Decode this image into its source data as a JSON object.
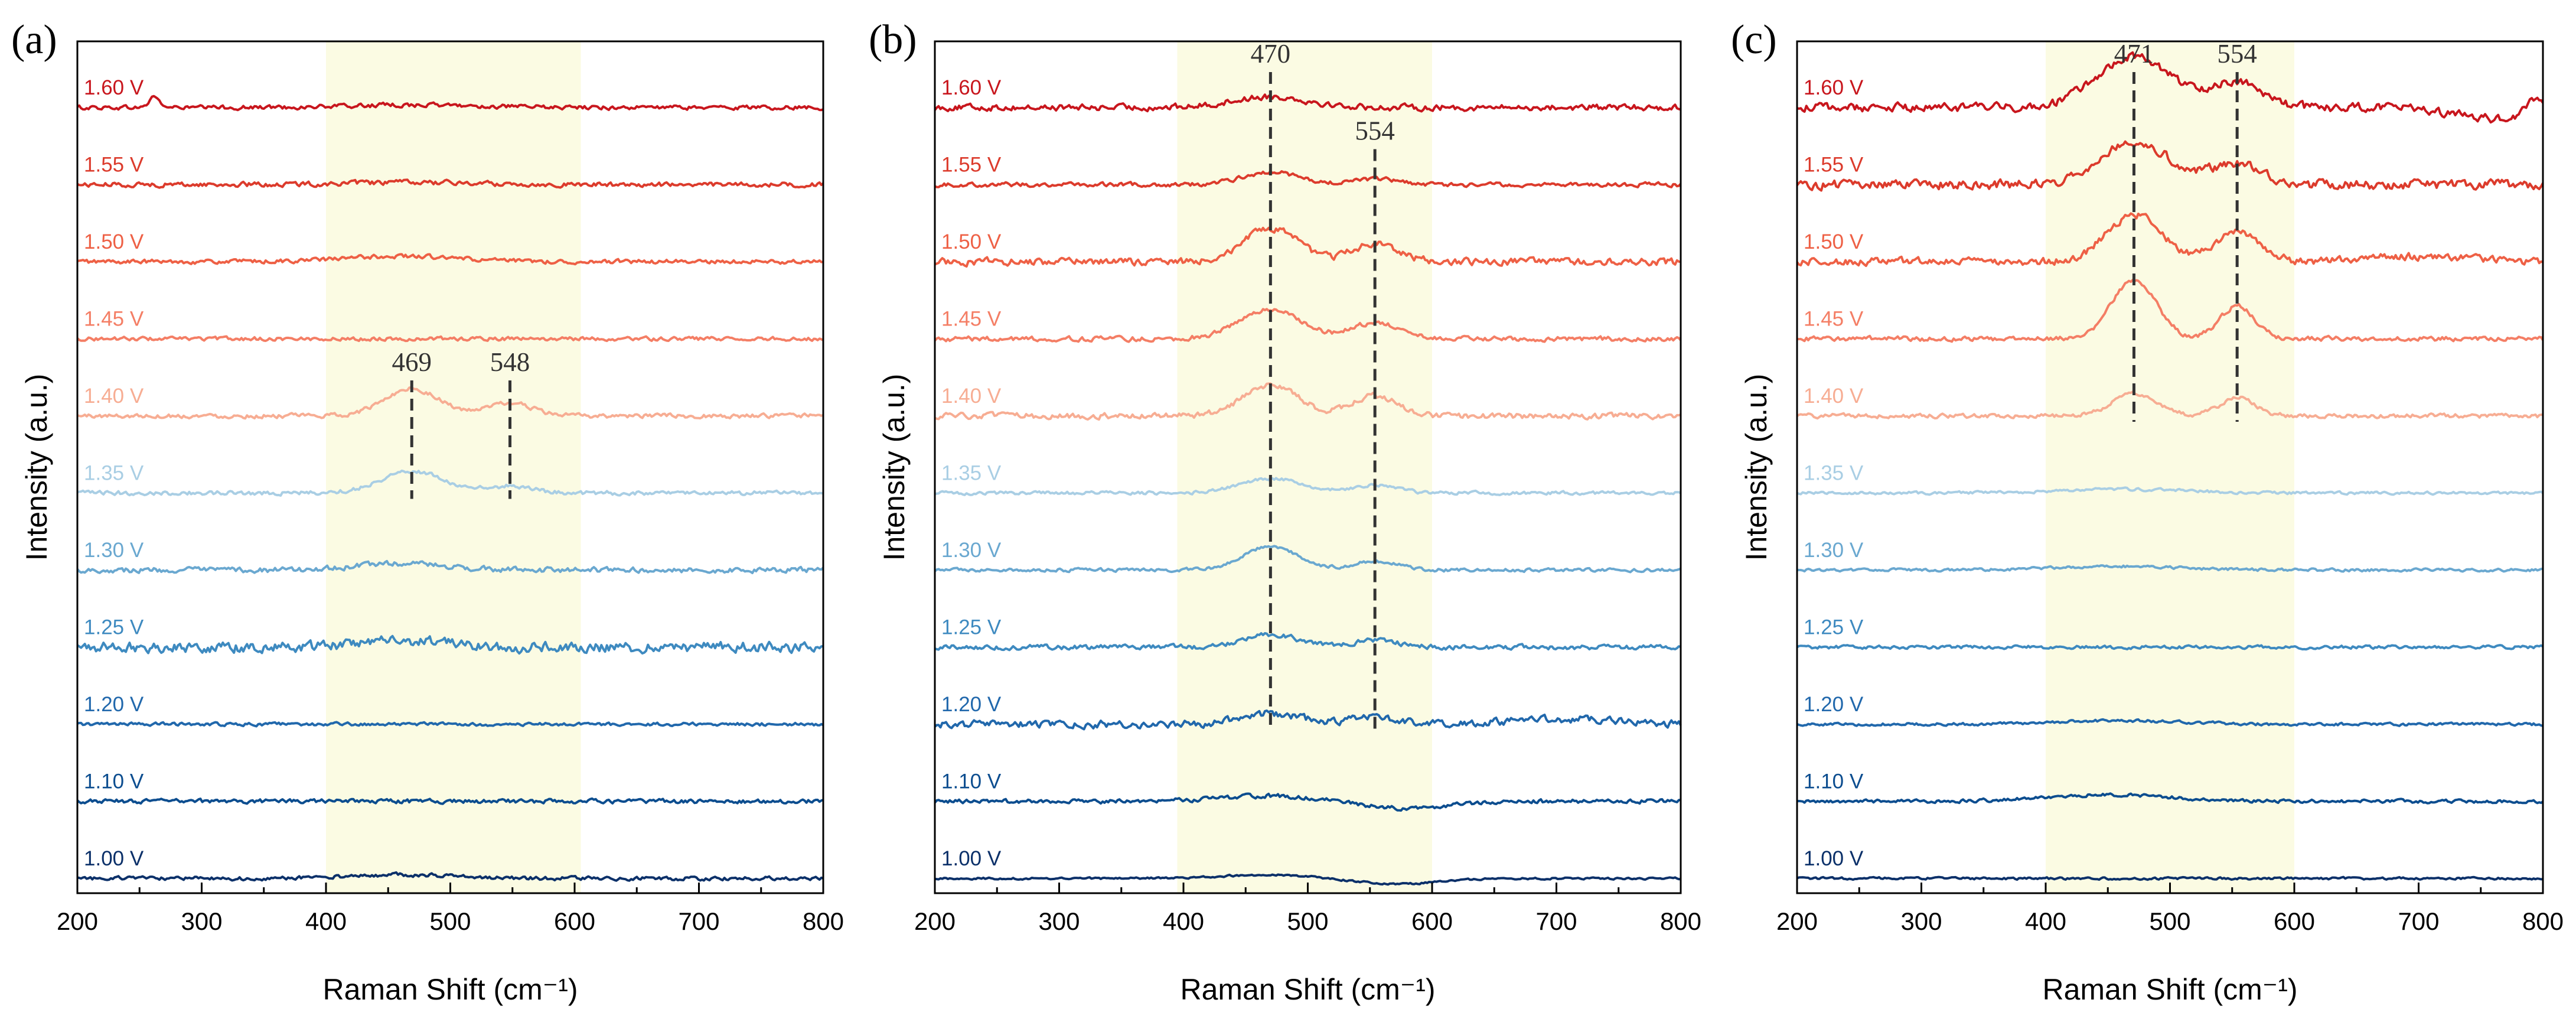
{
  "chart_data": [
    {
      "type": "line",
      "panel_label": "(a)",
      "xlabel": "Raman Shift (cm⁻¹)",
      "ylabel": "Intensity (a.u.)",
      "xlim": [
        200,
        800
      ],
      "xticks": [
        "200",
        "300",
        "400",
        "500",
        "600",
        "700",
        "800"
      ],
      "highlight_range": [
        400,
        605
      ],
      "series": [
        {
          "name": "1.60 V",
          "color": "#c8161d",
          "noise": 0.9,
          "peaks": [
            [
              262,
              3.0,
              4
            ],
            [
              470,
              0.7,
              50
            ]
          ]
        },
        {
          "name": "1.55 V",
          "color": "#dc3b2c",
          "noise": 1.0,
          "peaks": [
            [
              470,
              0.6,
              50
            ]
          ]
        },
        {
          "name": "1.50 V",
          "color": "#ee6045",
          "noise": 0.9,
          "peaks": [
            [
              460,
              1.5,
              45
            ]
          ]
        },
        {
          "name": "1.45 V",
          "color": "#f47e65",
          "noise": 0.8,
          "peaks": []
        },
        {
          "name": "1.40 V",
          "color": "#f7ad93",
          "noise": 0.9,
          "peaks": [
            [
              469,
              7.5,
              22
            ],
            [
              548,
              3.5,
              18
            ]
          ]
        },
        {
          "name": "1.35 V",
          "color": "#a9cee4",
          "noise": 0.9,
          "peaks": [
            [
              469,
              6.0,
              25
            ],
            [
              548,
              1.8,
              18
            ]
          ]
        },
        {
          "name": "1.30 V",
          "color": "#6aa8d0",
          "noise": 1.1,
          "peaks": [
            [
              460,
              1.8,
              35
            ]
          ]
        },
        {
          "name": "1.25 V",
          "color": "#3e8ac0",
          "noise": 2.2,
          "peaks": [
            [
              460,
              1.8,
              35
            ]
          ]
        },
        {
          "name": "1.20 V",
          "color": "#2168ac",
          "noise": 0.7,
          "peaks": []
        },
        {
          "name": "1.10 V",
          "color": "#0c4d8f",
          "noise": 0.9,
          "peaks": []
        },
        {
          "name": "1.00 V",
          "color": "#0b3069",
          "noise": 0.8,
          "peaks": [
            [
              460,
              1.0,
              40
            ]
          ]
        }
      ],
      "peak_annotations": [
        {
          "position": 469,
          "label": "469",
          "from_series": "1.40 V",
          "to_series": "1.35 V"
        },
        {
          "position": 548,
          "label": "548",
          "from_series": "1.40 V",
          "to_series": "1.35 V"
        }
      ]
    },
    {
      "type": "line",
      "panel_label": "(b)",
      "xlabel": "Raman Shift (cm⁻¹)",
      "ylabel": "Intensity (a.u.)",
      "xlim": [
        200,
        800
      ],
      "xticks": [
        "200",
        "300",
        "400",
        "500",
        "600",
        "700",
        "800"
      ],
      "highlight_range": [
        395,
        600
      ],
      "series": [
        {
          "name": "1.60 V",
          "color": "#c8161d",
          "noise": 1.3,
          "peaks": [
            [
              470,
              3.0,
              30
            ]
          ]
        },
        {
          "name": "1.55 V",
          "color": "#dc3b2c",
          "noise": 0.9,
          "peaks": [
            [
              470,
              3.5,
              22
            ],
            [
              554,
              1.5,
              18
            ]
          ]
        },
        {
          "name": "1.50 V",
          "color": "#ee6045",
          "noise": 1.5,
          "peaks": [
            [
              470,
              9.0,
              22
            ],
            [
              554,
              5.0,
              18
            ]
          ]
        },
        {
          "name": "1.45 V",
          "color": "#f47e65",
          "noise": 1.0,
          "peaks": [
            [
              470,
              8.0,
              25
            ],
            [
              554,
              4.5,
              18
            ]
          ]
        },
        {
          "name": "1.40 V",
          "color": "#f7ad93",
          "noise": 1.2,
          "peaks": [
            [
              470,
              8.5,
              22
            ],
            [
              554,
              5.5,
              18
            ]
          ]
        },
        {
          "name": "1.35 V",
          "color": "#a9cee4",
          "noise": 0.7,
          "peaks": [
            [
              470,
              4.0,
              25
            ],
            [
              554,
              2.0,
              18
            ]
          ]
        },
        {
          "name": "1.30 V",
          "color": "#6aa8d0",
          "noise": 0.7,
          "peaks": [
            [
              470,
              6.5,
              22
            ],
            [
              554,
              2.5,
              18
            ]
          ]
        },
        {
          "name": "1.25 V",
          "color": "#3e8ac0",
          "noise": 1.0,
          "peaks": [
            [
              470,
              3.5,
              22
            ],
            [
              554,
              2.0,
              18
            ]
          ]
        },
        {
          "name": "1.20 V",
          "color": "#2168ac",
          "noise": 1.6,
          "peaks": [
            [
              470,
              3.0,
              25
            ],
            [
              554,
              2.0,
              18
            ],
            [
              700,
              1.5,
              40
            ]
          ]
        },
        {
          "name": "1.10 V",
          "color": "#0c4d8f",
          "noise": 0.9,
          "peaks": [
            [
              470,
              1.5,
              40
            ],
            [
              580,
              -2.0,
              35
            ]
          ]
        },
        {
          "name": "1.00 V",
          "color": "#0b3069",
          "noise": 0.4,
          "peaks": [
            [
              470,
              1.0,
              40
            ],
            [
              570,
              -1.5,
              35
            ]
          ]
        }
      ],
      "peak_annotations": [
        {
          "position": 470,
          "label": "470",
          "from_series": "1.60 V",
          "to_series": "1.20 V"
        },
        {
          "position": 554,
          "label": "554",
          "from_series": "1.55 V",
          "to_series": "1.20 V"
        }
      ]
    },
    {
      "type": "line",
      "panel_label": "(c)",
      "xlabel": "Raman Shift (cm⁻¹)",
      "ylabel": "Intensity (a.u.)",
      "xlim": [
        200,
        800
      ],
      "xticks": [
        "200",
        "300",
        "400",
        "500",
        "600",
        "700",
        "800"
      ],
      "highlight_range": [
        400,
        600
      ],
      "series": [
        {
          "name": "1.60 V",
          "color": "#c8161d",
          "noise": 1.8,
          "peaks": [
            [
              471,
              14.0,
              30
            ],
            [
              554,
              7.0,
              20
            ],
            [
              760,
              -3.0,
              30
            ],
            [
              795,
              4.0,
              8
            ]
          ]
        },
        {
          "name": "1.55 V",
          "color": "#dc3b2c",
          "noise": 2.0,
          "peaks": [
            [
              471,
              12.0,
              28
            ],
            [
              554,
              6.0,
              20
            ]
          ]
        },
        {
          "name": "1.50 V",
          "color": "#ee6045",
          "noise": 1.6,
          "peaks": [
            [
              471,
              13.0,
              22
            ],
            [
              554,
              8.0,
              18
            ],
            [
              700,
              1.5,
              40
            ]
          ]
        },
        {
          "name": "1.45 V",
          "color": "#f47e65",
          "noise": 1.0,
          "peaks": [
            [
              471,
              16.0,
              18
            ],
            [
              554,
              9.0,
              14
            ]
          ]
        },
        {
          "name": "1.40 V",
          "color": "#f7ad93",
          "noise": 0.9,
          "peaks": [
            [
              471,
              6.0,
              18
            ],
            [
              554,
              5.0,
              14
            ]
          ]
        },
        {
          "name": "1.35 V",
          "color": "#a9cee4",
          "noise": 0.6,
          "peaks": [
            [
              460,
              1.0,
              50
            ]
          ]
        },
        {
          "name": "1.30 V",
          "color": "#6aa8d0",
          "noise": 0.6,
          "peaks": [
            [
              460,
              1.0,
              50
            ]
          ]
        },
        {
          "name": "1.25 V",
          "color": "#3e8ac0",
          "noise": 0.7,
          "peaks": []
        },
        {
          "name": "1.20 V",
          "color": "#2168ac",
          "noise": 0.6,
          "peaks": [
            [
              460,
              1.0,
              50
            ]
          ]
        },
        {
          "name": "1.10 V",
          "color": "#0c4d8f",
          "noise": 0.7,
          "peaks": [
            [
              450,
              1.8,
              50
            ]
          ]
        },
        {
          "name": "1.00 V",
          "color": "#0b3069",
          "noise": 0.5,
          "peaks": []
        }
      ],
      "peak_annotations": [
        {
          "position": 471,
          "label": "471",
          "from_series": "1.60 V",
          "to_series": "1.40 V"
        },
        {
          "position": 554,
          "label": "554",
          "from_series": "1.60 V",
          "to_series": "1.40 V"
        }
      ]
    }
  ]
}
